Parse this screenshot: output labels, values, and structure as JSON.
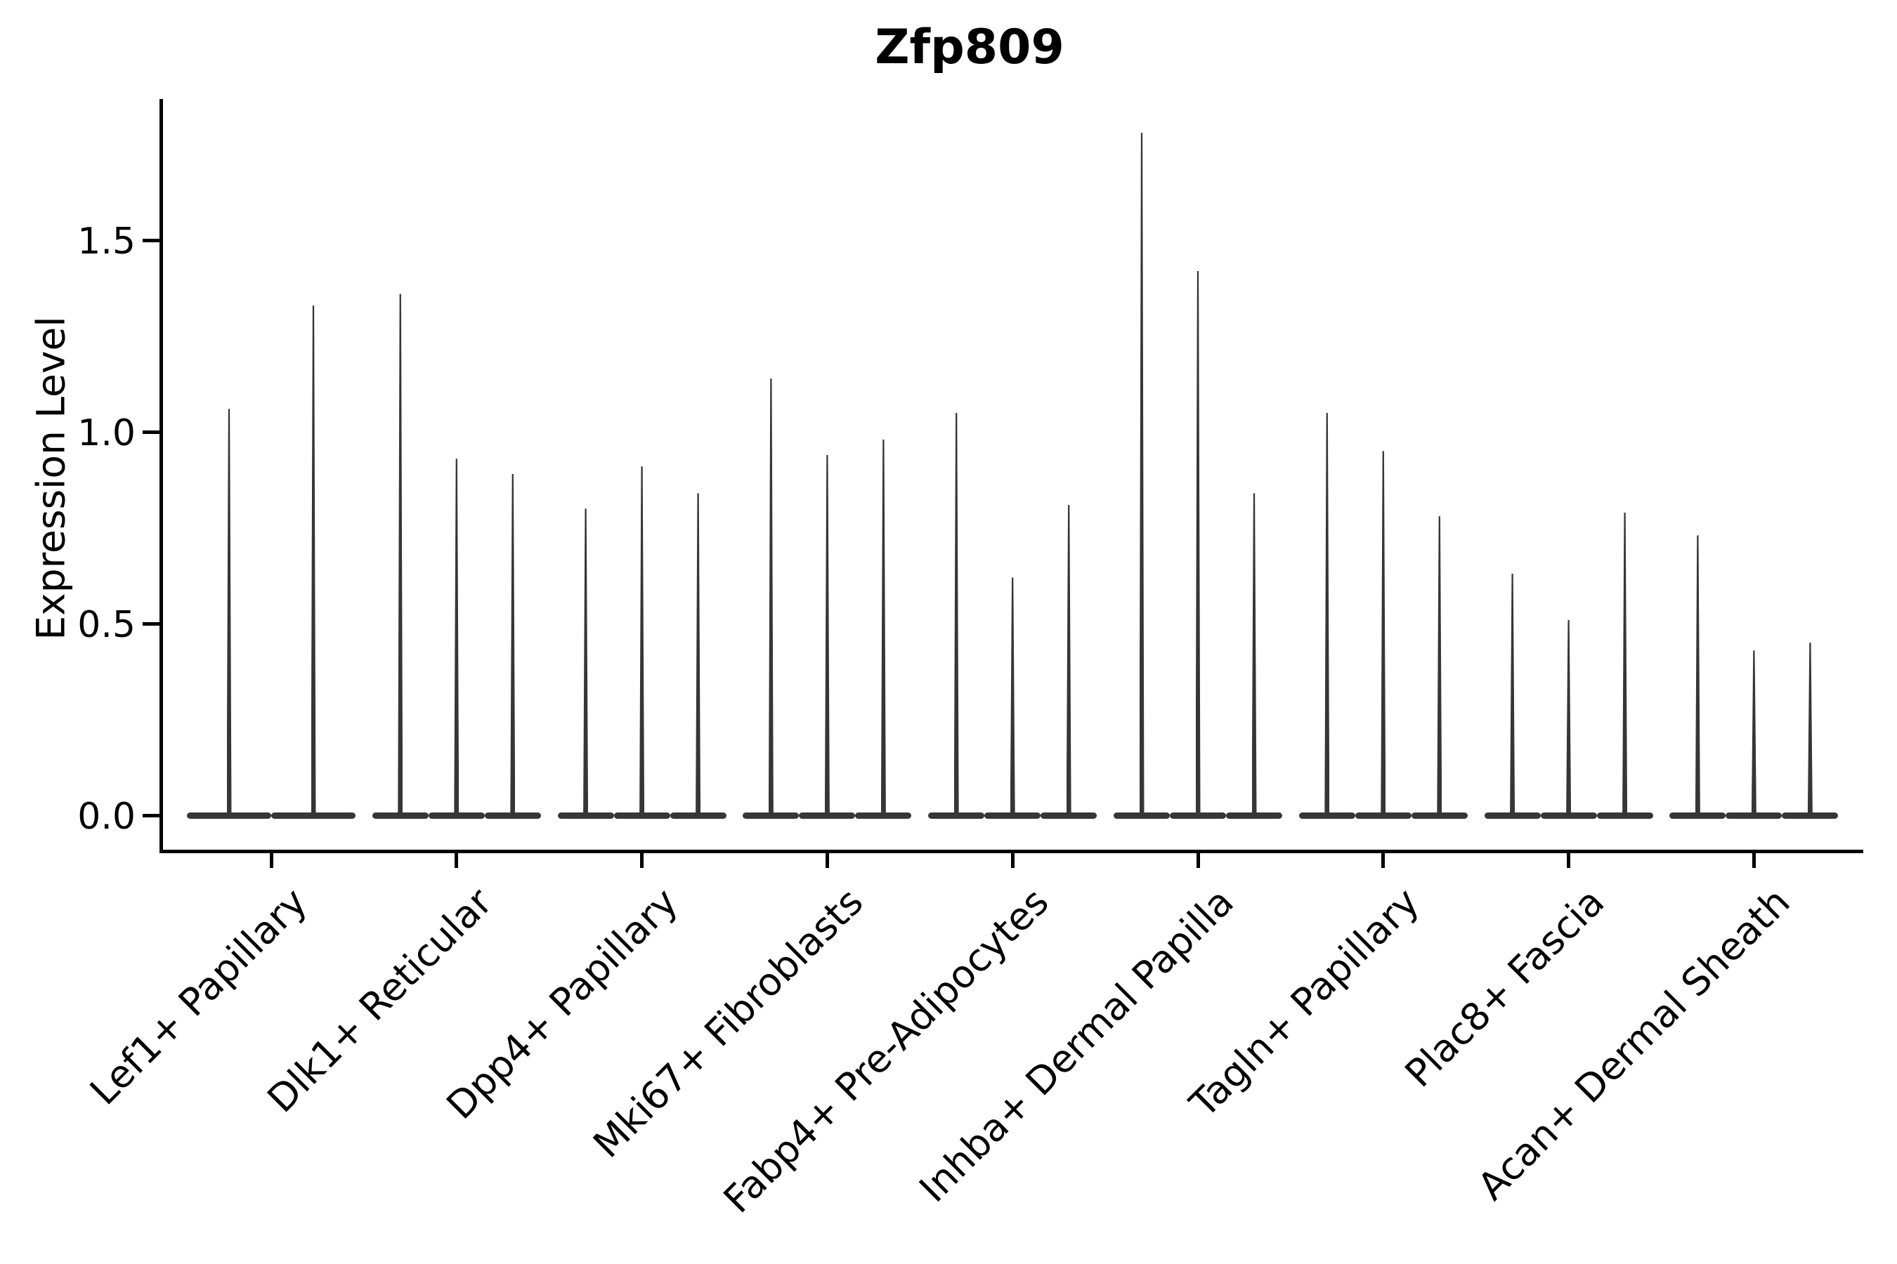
{
  "figure": {
    "title": "Zfp809",
    "background_color": "#ffffff",
    "axis_color": "#000000",
    "violin_color": "#363636"
  },
  "chart_data": {
    "type": "violin",
    "title": "Zfp809",
    "xlabel": "",
    "ylabel": "Expression Level",
    "ylim": [
      0,
      1.87
    ],
    "yticks": [
      0.0,
      0.5,
      1.0,
      1.5
    ],
    "yticklabels": [
      "0.0",
      "0.5",
      "1.0",
      "1.5"
    ],
    "grid": "off",
    "legend": "none",
    "x_tick_label_rotation_deg": 45,
    "categories": [
      "Lef1+ Papillary",
      "Dlk1+ Reticular",
      "Dpp4+ Papillary",
      "Mki67+ Fibroblasts",
      "Fabp4+ Pre-Adipocytes",
      "Inhba+ Dermal Papilla",
      "Tagln+ Papillary",
      "Plac8+ Fascia",
      "Acan+ Dermal Sheath"
    ],
    "series": [
      {
        "category": "Lef1+ Papillary",
        "violin_peak_expression": [
          1.06,
          1.33
        ]
      },
      {
        "category": "Dlk1+ Reticular",
        "violin_peak_expression": [
          1.36,
          0.93,
          0.89
        ]
      },
      {
        "category": "Dpp4+ Papillary",
        "violin_peak_expression": [
          0.8,
          0.91,
          0.84
        ]
      },
      {
        "category": "Mki67+ Fibroblasts",
        "violin_peak_expression": [
          1.14,
          0.94,
          0.98
        ]
      },
      {
        "category": "Fabp4+ Pre-Adipocytes",
        "violin_peak_expression": [
          1.05,
          0.62,
          0.81
        ]
      },
      {
        "category": "Inhba+ Dermal Papilla",
        "violin_peak_expression": [
          1.78,
          1.42,
          0.84
        ]
      },
      {
        "category": "Tagln+ Papillary",
        "violin_peak_expression": [
          1.05,
          0.95,
          0.78
        ]
      },
      {
        "category": "Plac8+ Fascia",
        "violin_peak_expression": [
          0.63,
          0.51,
          0.79
        ]
      },
      {
        "category": "Acan+ Dermal Sheath",
        "violin_peak_expression": [
          0.73,
          0.43,
          0.45
        ]
      }
    ]
  }
}
